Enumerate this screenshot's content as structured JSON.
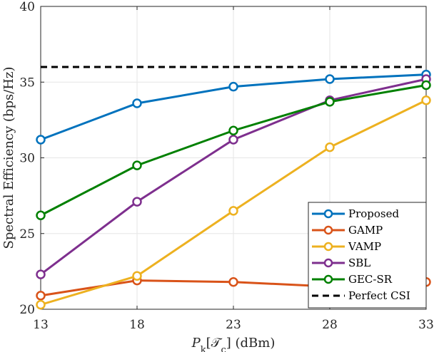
{
  "chart_data": {
    "type": "line",
    "title": "",
    "xlabel": "P_k[𝒯_c] (dBm)",
    "ylabel": "Spectral Efficiency (bps/Hz)",
    "xlim": [
      13,
      33
    ],
    "ylim": [
      20,
      40
    ],
    "xticks": [
      13,
      18,
      23,
      28,
      33
    ],
    "yticks": [
      20,
      25,
      30,
      35,
      40
    ],
    "grid": true,
    "legend_position": "bottom-right",
    "x": [
      13,
      18,
      23,
      28,
      33
    ],
    "series": [
      {
        "name": "Proposed",
        "color": "#0072BD",
        "marker": "circle",
        "values": [
          31.2,
          33.6,
          34.7,
          35.2,
          35.5
        ]
      },
      {
        "name": "GAMP",
        "color": "#D95319",
        "marker": "circle",
        "values": [
          20.9,
          21.9,
          21.8,
          21.5,
          21.8
        ]
      },
      {
        "name": "VAMP",
        "color": "#EDB120",
        "marker": "circle",
        "values": [
          20.3,
          22.2,
          26.5,
          30.7,
          33.8
        ]
      },
      {
        "name": "SBL",
        "color": "#7E2F8E",
        "marker": "circle",
        "values": [
          22.3,
          27.1,
          31.2,
          33.8,
          35.2
        ]
      },
      {
        "name": "GEC-SR",
        "color": "#008000",
        "marker": "circle",
        "values": [
          26.2,
          29.5,
          31.8,
          33.7,
          34.8
        ]
      },
      {
        "name": "Perfect CSI",
        "color": "#000000",
        "dashed": true,
        "marker": "none",
        "values": [
          36.0,
          36.0,
          36.0,
          36.0,
          36.0
        ]
      }
    ]
  }
}
